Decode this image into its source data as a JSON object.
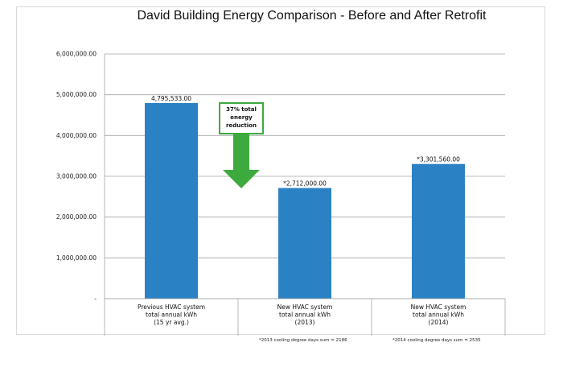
{
  "chart_data": {
    "type": "bar",
    "title": "David Building Energy Comparison - Before and After Retrofit",
    "xlabel": "",
    "ylabel": "",
    "ylim": [
      0,
      6000000
    ],
    "yticks": [
      "-",
      "1,000,000.00",
      "2,000,000.00",
      "3,000,000.00",
      "4,000,000.00",
      "5,000,000.00",
      "6,000,000.00"
    ],
    "grid": true,
    "bar_color": "#2a82c4",
    "categories": [
      [
        "Previous HVAC system",
        "total annual kWh",
        "(15 yr avg.)"
      ],
      [
        "New HVAC system",
        "total annual kWh",
        "(2013)"
      ],
      [
        "New HVAC system",
        "total annual kWh",
        "(2014)"
      ]
    ],
    "values": [
      4795533,
      2712000,
      3301560
    ],
    "data_labels": [
      "4,795,533.00",
      "*2,712,000.00",
      "*3,301,560.00"
    ],
    "annotation": {
      "lines": [
        "37% total",
        "energy",
        "reduction"
      ],
      "color": "#3daa3d"
    },
    "footnotes": [
      "*2013 cooling degree days sum = 2186",
      "*2014 cooling degree days sum = 2535"
    ]
  }
}
